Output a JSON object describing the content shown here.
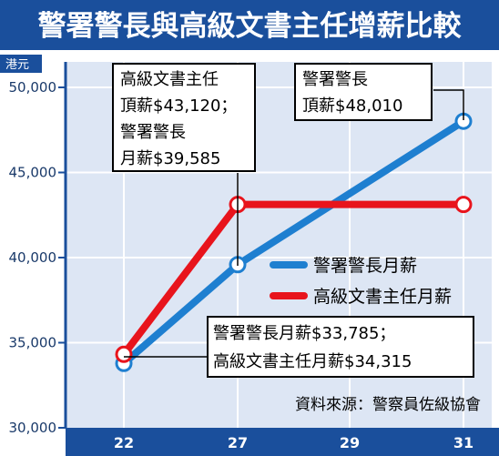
{
  "chart_data": {
    "type": "line",
    "title": "警署警長與高級文書主任增薪比較",
    "unit_label": "港元",
    "x": [
      22,
      27,
      29,
      31
    ],
    "x_ticks": [
      "22",
      "27",
      "29",
      "31"
    ],
    "ylim": [
      30000,
      51000
    ],
    "y_ticks": [
      "30,000",
      "35,000",
      "40,000",
      "45,000",
      "50,000"
    ],
    "y_tick_values": [
      30000,
      35000,
      40000,
      45000,
      50000
    ],
    "grid": true,
    "series": [
      {
        "name": "警署警長月薪",
        "color": "#1e7fd0",
        "points": [
          [
            22,
            33785
          ],
          [
            27,
            39585
          ],
          [
            31,
            48010
          ]
        ]
      },
      {
        "name": "高級文書主任月薪",
        "color": "#e8141c",
        "points": [
          [
            22,
            34315
          ],
          [
            27,
            43120
          ],
          [
            31,
            43120
          ]
        ]
      }
    ],
    "annotations": [
      {
        "lines": [
          "高級文書主任",
          "頂薪$43,120；",
          "警署警長",
          "月薪$39,585"
        ]
      },
      {
        "lines": [
          "警署警長",
          "頂薪$48,010"
        ]
      },
      {
        "lines": [
          "警署警長月薪$33,785；",
          "高級文書主任月薪$34,315"
        ]
      }
    ],
    "legend_position": "right",
    "source": "資料來源：警察員佐級協會"
  },
  "colors": {
    "title_bg": "#1a4f9c",
    "plot_bg": "#dde6f4",
    "axis": "#1a4f9c",
    "grid": "#ffffff"
  }
}
